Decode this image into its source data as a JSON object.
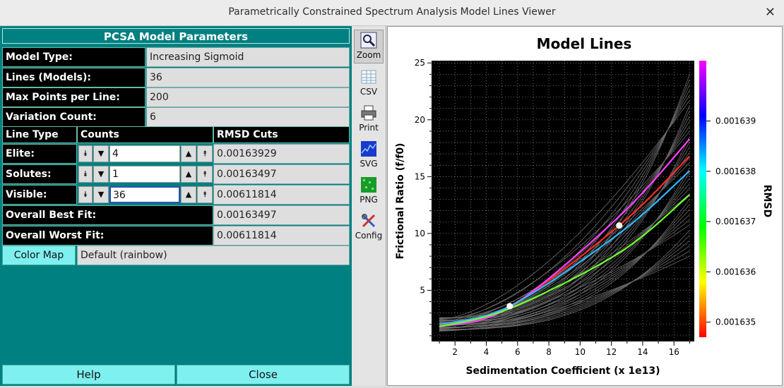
{
  "window": {
    "title": "Parametrically Constrained Spectrum Analysis Model Lines Viewer",
    "close_glyph": "✕"
  },
  "params": {
    "header": "PCSA Model Parameters",
    "rows": [
      {
        "label": "Model Type:",
        "value": "Increasing Sigmoid"
      },
      {
        "label": "Lines (Models):",
        "value": "36"
      },
      {
        "label": "Max Points per Line:",
        "value": "200"
      },
      {
        "label": "Variation Count:",
        "value": "6"
      }
    ],
    "table_headers": {
      "type": "Line Type",
      "counts": "Counts",
      "rmsd": "RMSD Cuts"
    },
    "line_rows": [
      {
        "label": "Elite:",
        "count": "4",
        "rmsd": "0.00163929"
      },
      {
        "label": "Solutes:",
        "count": "1",
        "rmsd": "0.00163497"
      },
      {
        "label": "Visible:",
        "count": "36",
        "rmsd": "0.00611814"
      }
    ],
    "best_fit": {
      "label": "Overall Best Fit:",
      "value": "0.00163497"
    },
    "worst_fit": {
      "label": "Overall Worst Fit:",
      "value": "0.00611814"
    },
    "color_map": {
      "button": "Color Map",
      "value": "Default (rainbow)"
    }
  },
  "buttons": {
    "help": "Help",
    "close": "Close"
  },
  "toolbar": {
    "zoom": "Zoom",
    "csv": "CSV",
    "print": "Print",
    "svg": "SVG",
    "png": "PNG",
    "config": "Config"
  },
  "chart_data": {
    "type": "line",
    "title": "Model Lines",
    "xlabel": "Sedimentation Coefficient (x 1e13)",
    "ylabel": "Frictional Ratio (f/f0)",
    "colorbar_label": "RMSD",
    "xlim": [
      0.5,
      17.3
    ],
    "ylim": [
      0.5,
      25.2
    ],
    "x_ticks": [
      2,
      4,
      6,
      8,
      10,
      12,
      14,
      16
    ],
    "y_ticks": [
      5,
      10,
      15,
      20,
      25
    ],
    "colorbar_ticks": [
      "0.001639",
      "0.001638",
      "0.001637",
      "0.001636",
      "0.001635"
    ],
    "colorbar_range": [
      0.0016347,
      0.0016402
    ],
    "grid": true,
    "background": "#000000",
    "series": [
      {
        "color": "#ff2a2a",
        "x": [
          1,
          5.5,
          12.5,
          17
        ],
        "y": [
          1.9,
          3.6,
          10.7,
          16.8
        ]
      },
      {
        "color": "#ff40ff",
        "x": [
          1,
          5.5,
          12.5,
          17
        ],
        "y": [
          1.8,
          3.5,
          11.5,
          18.3
        ]
      },
      {
        "color": "#30b8ff",
        "x": [
          1,
          5.5,
          12.5,
          17
        ],
        "y": [
          2.0,
          3.6,
          10.0,
          15.5
        ]
      },
      {
        "color": "#70ff30",
        "x": [
          1,
          5.5,
          12.5,
          17
        ],
        "y": [
          1.8,
          3.4,
          8.3,
          13.4
        ]
      }
    ],
    "points": [
      {
        "x": 5.5,
        "y": 3.6
      },
      {
        "x": 12.5,
        "y": 10.7
      }
    ]
  }
}
